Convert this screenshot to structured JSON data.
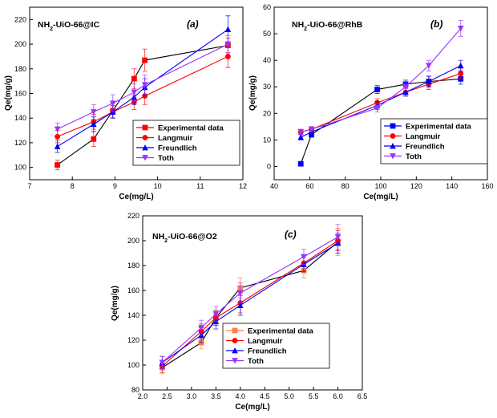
{
  "chart_data": [
    {
      "type": "line",
      "title": "NH2-UiO-66@IC",
      "title_base": "NH",
      "title_sub": "2",
      "title_rest": "-UiO-66@IC",
      "panel_label": "(a)",
      "xlabel": "Ce(mg/L)",
      "ylabel": "Qe(mg/g)",
      "xlim": [
        7,
        12
      ],
      "ylim": [
        90,
        230
      ],
      "xticks": [
        7,
        8,
        9,
        10,
        11,
        12
      ],
      "yticks": [
        100,
        120,
        140,
        160,
        180,
        200,
        220
      ],
      "legend_position": "lower-right",
      "series": [
        {
          "name": "Experimental data",
          "color": "#ff0000",
          "marker": "square",
          "x": [
            7.65,
            8.5,
            8.95,
            9.45,
            9.7,
            11.65
          ],
          "y": [
            102,
            123,
            146,
            172,
            187,
            199
          ],
          "err": [
            4,
            6,
            6,
            8,
            9,
            6
          ]
        },
        {
          "name": "Langmuir",
          "color": "#ff0000",
          "marker": "circle",
          "x": [
            7.65,
            8.5,
            8.95,
            9.45,
            9.7,
            11.65
          ],
          "y": [
            125,
            137,
            145,
            153,
            158,
            190
          ],
          "err": [
            5,
            6,
            5,
            6,
            7,
            9
          ]
        },
        {
          "name": "Freundlich",
          "color": "#0000ff",
          "marker": "triangle-up",
          "x": [
            7.65,
            8.5,
            8.95,
            9.45,
            9.7,
            11.65
          ],
          "y": [
            117,
            135,
            145,
            157,
            165,
            212
          ],
          "err": [
            5,
            6,
            5,
            6,
            7,
            11
          ]
        },
        {
          "name": "Toth",
          "color": "#9933ff",
          "marker": "triangle-down",
          "x": [
            7.65,
            8.5,
            8.95,
            9.45,
            9.7,
            11.65
          ],
          "y": [
            131,
            145,
            152,
            161,
            167,
            200
          ],
          "err": [
            5,
            6,
            7,
            7,
            8,
            7
          ]
        }
      ]
    },
    {
      "type": "line",
      "title": "NH2-UiO-66@RhB",
      "title_base": "NH",
      "title_sub": "2",
      "title_rest": "-UiO-66@RhB",
      "panel_label": "(b)",
      "xlabel": "Ce(mg/L)",
      "ylabel": "Qe(mg/g)",
      "xlim": [
        40,
        160
      ],
      "ylim": [
        -5,
        60
      ],
      "xticks": [
        40,
        60,
        80,
        100,
        120,
        140,
        160
      ],
      "yticks": [
        0,
        10,
        20,
        30,
        40,
        50,
        60
      ],
      "legend_position": "center-right",
      "series": [
        {
          "name": "Experimental data",
          "color": "#0000ff",
          "marker": "square",
          "x": [
            55,
            61,
            98,
            114,
            127,
            145
          ],
          "y": [
            1,
            12,
            29,
            31,
            32,
            33
          ],
          "err": [
            0,
            1,
            1.5,
            1.5,
            2,
            2
          ]
        },
        {
          "name": "Langmuir",
          "color": "#ff0000",
          "marker": "circle",
          "x": [
            55,
            61,
            98,
            114,
            127,
            145
          ],
          "y": [
            13,
            14,
            24,
            28,
            31,
            35
          ],
          "err": [
            1,
            1,
            1.5,
            1.5,
            2,
            2
          ]
        },
        {
          "name": "Freundlich",
          "color": "#0000ff",
          "marker": "triangle-up",
          "x": [
            55,
            61,
            98,
            114,
            127,
            145
          ],
          "y": [
            11,
            13,
            23,
            28,
            32,
            38
          ],
          "err": [
            1,
            1,
            1.5,
            1.5,
            2,
            2
          ]
        },
        {
          "name": "Toth",
          "color": "#9933ff",
          "marker": "triangle-down",
          "x": [
            55,
            61,
            98,
            114,
            127,
            145
          ],
          "y": [
            13,
            14,
            22,
            30,
            38,
            52
          ],
          "err": [
            1,
            1,
            1.5,
            1.5,
            2,
            3
          ]
        }
      ]
    },
    {
      "type": "line",
      "title": "NH2-UiO-66@O2",
      "title_base": "NH",
      "title_sub": "2",
      "title_rest": "-UiO-66@O2",
      "panel_label": "(c)",
      "xlabel": "Ce(mg/L)",
      "ylabel": "Qe(mg/g)",
      "xlim": [
        2.0,
        6.5
      ],
      "ylim": [
        80,
        220
      ],
      "xticks": [
        2.0,
        2.5,
        3.0,
        3.5,
        4.0,
        4.5,
        5.0,
        5.5,
        6.0,
        6.5
      ],
      "xtick_labels": [
        "2.0",
        "2.5",
        "3.0",
        "3.5",
        "4.0",
        "4.5",
        "5.0",
        "5.5",
        "6.0",
        "6.5"
      ],
      "yticks": [
        80,
        100,
        120,
        140,
        160,
        180,
        200,
        220
      ],
      "legend_position": "lower-center",
      "series": [
        {
          "name": "Experimental data",
          "color": "#ff8040",
          "marker": "square",
          "x": [
            2.4,
            3.2,
            3.5,
            4.0,
            5.3,
            6.0
          ],
          "y": [
            98,
            118,
            138,
            162,
            176,
            199
          ],
          "err": [
            5,
            5,
            6,
            8,
            6,
            11
          ]
        },
        {
          "name": "Langmuir",
          "color": "#ff0000",
          "marker": "circle",
          "x": [
            2.4,
            3.2,
            3.5,
            4.0,
            5.3,
            6.0
          ],
          "y": [
            99,
            127,
            138,
            150,
            182,
            200
          ],
          "err": [
            5,
            6,
            6,
            8,
            6,
            8
          ]
        },
        {
          "name": "Freundlich",
          "color": "#0000ff",
          "marker": "triangle-up",
          "x": [
            2.4,
            3.2,
            3.5,
            4.0,
            5.3,
            6.0
          ],
          "y": [
            102,
            124,
            135,
            148,
            181,
            198
          ],
          "err": [
            5,
            6,
            6,
            8,
            6,
            8
          ]
        },
        {
          "name": "Toth",
          "color": "#9933ff",
          "marker": "triangle-down",
          "x": [
            2.4,
            3.2,
            3.5,
            4.0,
            5.3,
            6.0
          ],
          "y": [
            102,
            130,
            141,
            158,
            187,
            203
          ],
          "err": [
            5,
            6,
            6,
            8,
            6,
            10
          ]
        }
      ]
    }
  ]
}
